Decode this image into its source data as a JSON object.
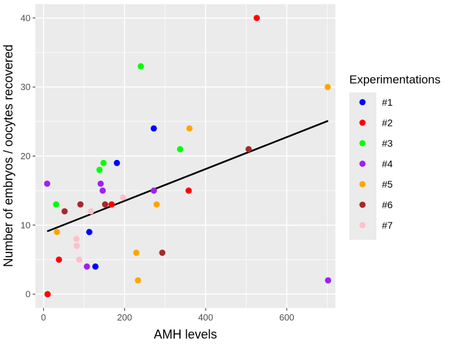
{
  "chart_data": {
    "type": "scatter",
    "xlabel": "AMH levels",
    "ylabel": "Number of embryos / oocytes recovered",
    "xlim": [
      -20,
      720
    ],
    "ylim": [
      -2,
      42
    ],
    "x_ticks": [
      0,
      200,
      400,
      600
    ],
    "y_ticks": [
      0,
      10,
      20,
      30,
      40
    ],
    "legend": {
      "title": "Experimentations",
      "position": "right"
    },
    "series": [
      {
        "name": "#1",
        "color": "#0000ff",
        "points": [
          [
            113,
            9
          ],
          [
            128,
            4
          ],
          [
            181,
            19
          ],
          [
            272,
            24
          ]
        ]
      },
      {
        "name": "#2",
        "color": "#ff0000",
        "points": [
          [
            10,
            0
          ],
          [
            38,
            5
          ],
          [
            168,
            13
          ],
          [
            358,
            15
          ],
          [
            526,
            40
          ]
        ]
      },
      {
        "name": "#3",
        "color": "#00ff00",
        "points": [
          [
            31,
            13
          ],
          [
            138,
            18
          ],
          [
            148,
            19
          ],
          [
            240,
            33
          ],
          [
            337,
            21
          ]
        ]
      },
      {
        "name": "#4",
        "color": "#a020f0",
        "points": [
          [
            9,
            16
          ],
          [
            107,
            4
          ],
          [
            141,
            16
          ],
          [
            146,
            15
          ],
          [
            272,
            15
          ],
          [
            702,
            2
          ]
        ]
      },
      {
        "name": "#5",
        "color": "#ffa500",
        "points": [
          [
            33,
            9
          ],
          [
            229,
            6
          ],
          [
            233,
            2
          ],
          [
            279,
            13
          ],
          [
            360,
            24
          ],
          [
            701,
            30
          ]
        ]
      },
      {
        "name": "#6",
        "color": "#a52a2a",
        "points": [
          [
            52,
            12
          ],
          [
            91,
            13
          ],
          [
            152,
            13
          ],
          [
            293,
            6
          ],
          [
            506,
            21
          ]
        ]
      },
      {
        "name": "#7",
        "color": "#ffc0cb",
        "points": [
          [
            81,
            8
          ],
          [
            82,
            7
          ],
          [
            88,
            5
          ],
          [
            117,
            12
          ],
          [
            196,
            14
          ]
        ]
      }
    ],
    "trend_line": {
      "color": "#000000",
      "x": [
        9,
        702
      ],
      "y": [
        9.1,
        25.1
      ]
    }
  }
}
